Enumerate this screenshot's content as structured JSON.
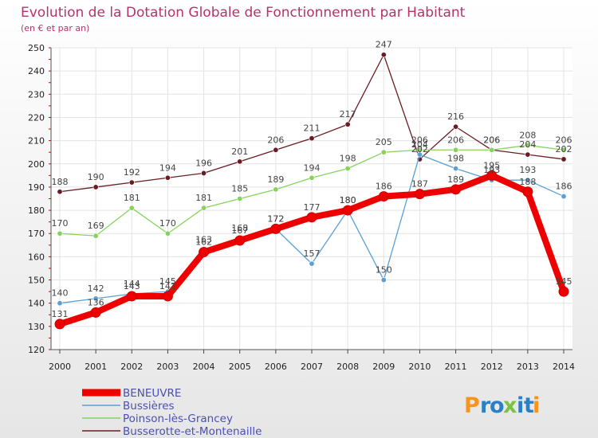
{
  "chart_data": {
    "type": "line",
    "title": "Evolution de la Dotation Globale de Fonctionnement par Habitant",
    "subtitle": "(en € et par an)",
    "xlabel": "",
    "ylabel": "",
    "ylim": [
      120,
      250
    ],
    "y_ticks": [
      120,
      130,
      140,
      150,
      160,
      170,
      180,
      190,
      200,
      210,
      220,
      230,
      240,
      250
    ],
    "categories": [
      "2000",
      "2001",
      "2002",
      "2003",
      "2004",
      "2005",
      "2006",
      "2007",
      "2008",
      "2009",
      "2010",
      "2011",
      "2012",
      "2013",
      "2014"
    ],
    "grid": true,
    "legend_position": "bottom-left",
    "series": [
      {
        "name": "Busserotte-et-Montenaille",
        "color": "#6b1b23",
        "values": [
          188,
          190,
          192,
          194,
          196,
          201,
          206,
          211,
          217,
          247,
          202,
          216,
          206,
          204,
          202
        ]
      },
      {
        "name": "Poinson-lès-Grancey",
        "color": "#86d35c",
        "values": [
          170,
          169,
          181,
          170,
          181,
          185,
          189,
          194,
          198,
          205,
          206,
          206,
          206,
          208,
          206
        ]
      },
      {
        "name": "Bussières",
        "color": "#5b9fd4",
        "values": [
          140,
          142,
          144,
          145,
          163,
          168,
          172,
          157,
          180,
          150,
          204,
          198,
          193,
          193,
          186
        ]
      },
      {
        "name": "BENEUVRE",
        "color": "#ee0000",
        "values": [
          131,
          136,
          143,
          143,
          162,
          167,
          172,
          177,
          180,
          186,
          187,
          189,
          195,
          188,
          145
        ]
      }
    ]
  },
  "legend": {
    "items": [
      {
        "label": "BENEUVRE",
        "color": "#ee0000"
      },
      {
        "label": "Bussières",
        "color": "#5b9fd4"
      },
      {
        "label": "Poinson-lès-Grancey",
        "color": "#86d35c"
      },
      {
        "label": "Busserotte-et-Montenaille",
        "color": "#6b1b23"
      }
    ]
  },
  "logo": {
    "text": "Proxiti",
    "letters": [
      "P",
      "r",
      "o",
      "x",
      "i",
      "t",
      "i"
    ],
    "colors": [
      "#f7941d",
      "#2b7fc3",
      "#2b7fc3",
      "#7cc142",
      "#2b7fc3",
      "#2b7fc3",
      "#f7941d"
    ]
  }
}
